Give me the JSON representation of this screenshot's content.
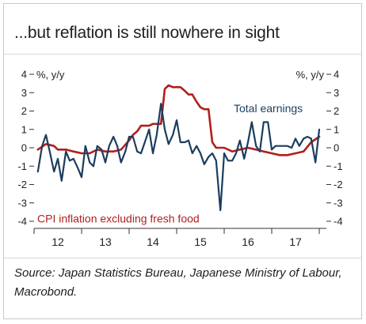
{
  "title": "...but reflation is still nowhere in sight",
  "source": "Source: Japan Statistics Bureau, Japanese Ministry of Labour, Macrobond.",
  "chart_data": {
    "type": "line",
    "left_unit_label": "%, y/y",
    "right_unit_label": "%, y/y",
    "ylim": [
      -4,
      4
    ],
    "y_ticks": [
      4,
      3,
      2,
      1,
      0,
      -1,
      -2,
      -3,
      -4
    ],
    "y_tick_labels": [
      "4",
      "3",
      "2",
      "1",
      "0",
      "-1",
      "-2",
      "-3",
      "-4"
    ],
    "xlim": [
      2011.5,
      2017.65
    ],
    "x_ticks": [
      2012,
      2013,
      2014,
      2015,
      2016,
      2017
    ],
    "x_tick_labels": [
      "12",
      "13",
      "14",
      "15",
      "16",
      "17"
    ],
    "grid": false,
    "series": [
      {
        "name": "Total earnings",
        "color": "#1b3d5e",
        "x": [
          2011.58,
          2011.67,
          2011.75,
          2011.83,
          2011.92,
          2012.0,
          2012.08,
          2012.17,
          2012.25,
          2012.33,
          2012.42,
          2012.5,
          2012.58,
          2012.67,
          2012.75,
          2012.83,
          2012.92,
          2013.0,
          2013.08,
          2013.17,
          2013.25,
          2013.33,
          2013.42,
          2013.5,
          2013.58,
          2013.67,
          2013.75,
          2013.83,
          2013.92,
          2014.0,
          2014.08,
          2014.17,
          2014.25,
          2014.33,
          2014.42,
          2014.5,
          2014.58,
          2014.67,
          2014.75,
          2014.83,
          2014.92,
          2015.0,
          2015.08,
          2015.17,
          2015.25,
          2015.33,
          2015.42,
          2015.5,
          2015.58,
          2015.67,
          2015.75,
          2015.83,
          2015.92,
          2016.0,
          2016.08,
          2016.17,
          2016.25,
          2016.33,
          2016.42,
          2016.5,
          2016.58,
          2016.67,
          2016.75,
          2016.83,
          2016.92,
          2017.0,
          2017.08,
          2017.17,
          2017.25,
          2017.33,
          2017.42,
          2017.5
        ],
        "values": [
          -1.3,
          0.1,
          0.7,
          -0.2,
          -1.3,
          -0.6,
          -1.8,
          -0.2,
          -0.7,
          -0.6,
          -1.1,
          -1.6,
          0.1,
          -0.8,
          -1.0,
          0.1,
          -0.1,
          -0.8,
          0.1,
          0.6,
          0.1,
          -0.8,
          -0.2,
          0.6,
          0.6,
          -0.2,
          -0.3,
          0.3,
          1.0,
          -0.3,
          0.7,
          2.4,
          1.0,
          0.2,
          0.7,
          1.5,
          0.3,
          0.3,
          0.4,
          -0.3,
          0.1,
          -0.3,
          -0.9,
          -0.5,
          -0.3,
          -0.7,
          -3.4,
          -0.3,
          -0.7,
          -0.7,
          -0.3,
          0.4,
          -0.6,
          0.3,
          1.4,
          0.1,
          -0.2,
          1.4,
          1.4,
          -0.1,
          0.1,
          0.1,
          0.1,
          0.1,
          0.0,
          0.5,
          0.1,
          0.5,
          0.6,
          0.5,
          -0.8,
          1.0
        ]
      },
      {
        "name": "CPI inflation excluding fresh food",
        "color": "#b0201e",
        "x": [
          2011.58,
          2011.75,
          2011.92,
          2012.0,
          2012.17,
          2012.33,
          2012.5,
          2012.67,
          2012.83,
          2013.0,
          2013.17,
          2013.33,
          2013.5,
          2013.58,
          2013.67,
          2013.75,
          2013.83,
          2013.92,
          2014.0,
          2014.17,
          2014.25,
          2014.33,
          2014.42,
          2014.5,
          2014.58,
          2014.67,
          2014.75,
          2014.83,
          2014.92,
          2015.0,
          2015.08,
          2015.17,
          2015.25,
          2015.33,
          2015.5,
          2015.67,
          2015.83,
          2016.0,
          2016.17,
          2016.33,
          2016.5,
          2016.67,
          2016.83,
          2017.0,
          2017.17,
          2017.33,
          2017.5
        ],
        "values": [
          -0.1,
          0.2,
          0.1,
          -0.1,
          -0.1,
          -0.2,
          -0.3,
          -0.3,
          -0.1,
          -0.2,
          -0.2,
          -0.1,
          0.4,
          0.7,
          0.9,
          1.2,
          1.2,
          1.2,
          1.3,
          1.3,
          3.2,
          3.4,
          3.3,
          3.3,
          3.3,
          3.1,
          2.9,
          2.9,
          2.5,
          2.2,
          2.1,
          2.1,
          0.3,
          0.0,
          0.0,
          -0.2,
          -0.1,
          0.0,
          -0.1,
          -0.2,
          -0.3,
          -0.4,
          -0.4,
          -0.3,
          -0.2,
          0.3,
          0.6
        ]
      }
    ],
    "annotations": [
      {
        "text": "Total earnings",
        "series": "Total earnings"
      },
      {
        "text": "CPI inflation excluding fresh food",
        "series": "CPI inflation excluding fresh food"
      }
    ]
  }
}
